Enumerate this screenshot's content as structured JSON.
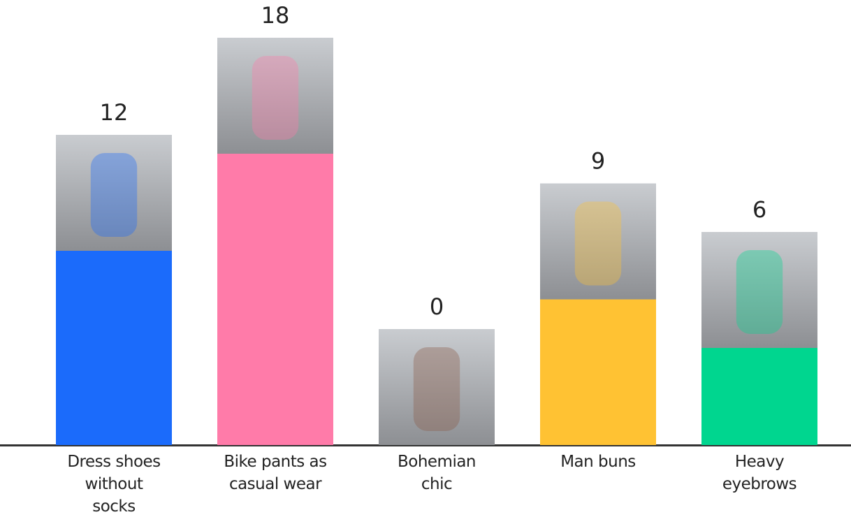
{
  "chart_data": {
    "type": "bar",
    "categories": [
      "Dress shoes without socks",
      "Bike pants as casual wear",
      "Bohemian chic",
      "Man buns",
      "Heavy eyebrows"
    ],
    "values": [
      12,
      18,
      0,
      9,
      6
    ],
    "colors": [
      "#1b6bfb",
      "#ff7ba9",
      "#8a5a44",
      "#ffc233",
      "#00d68f"
    ]
  }
}
